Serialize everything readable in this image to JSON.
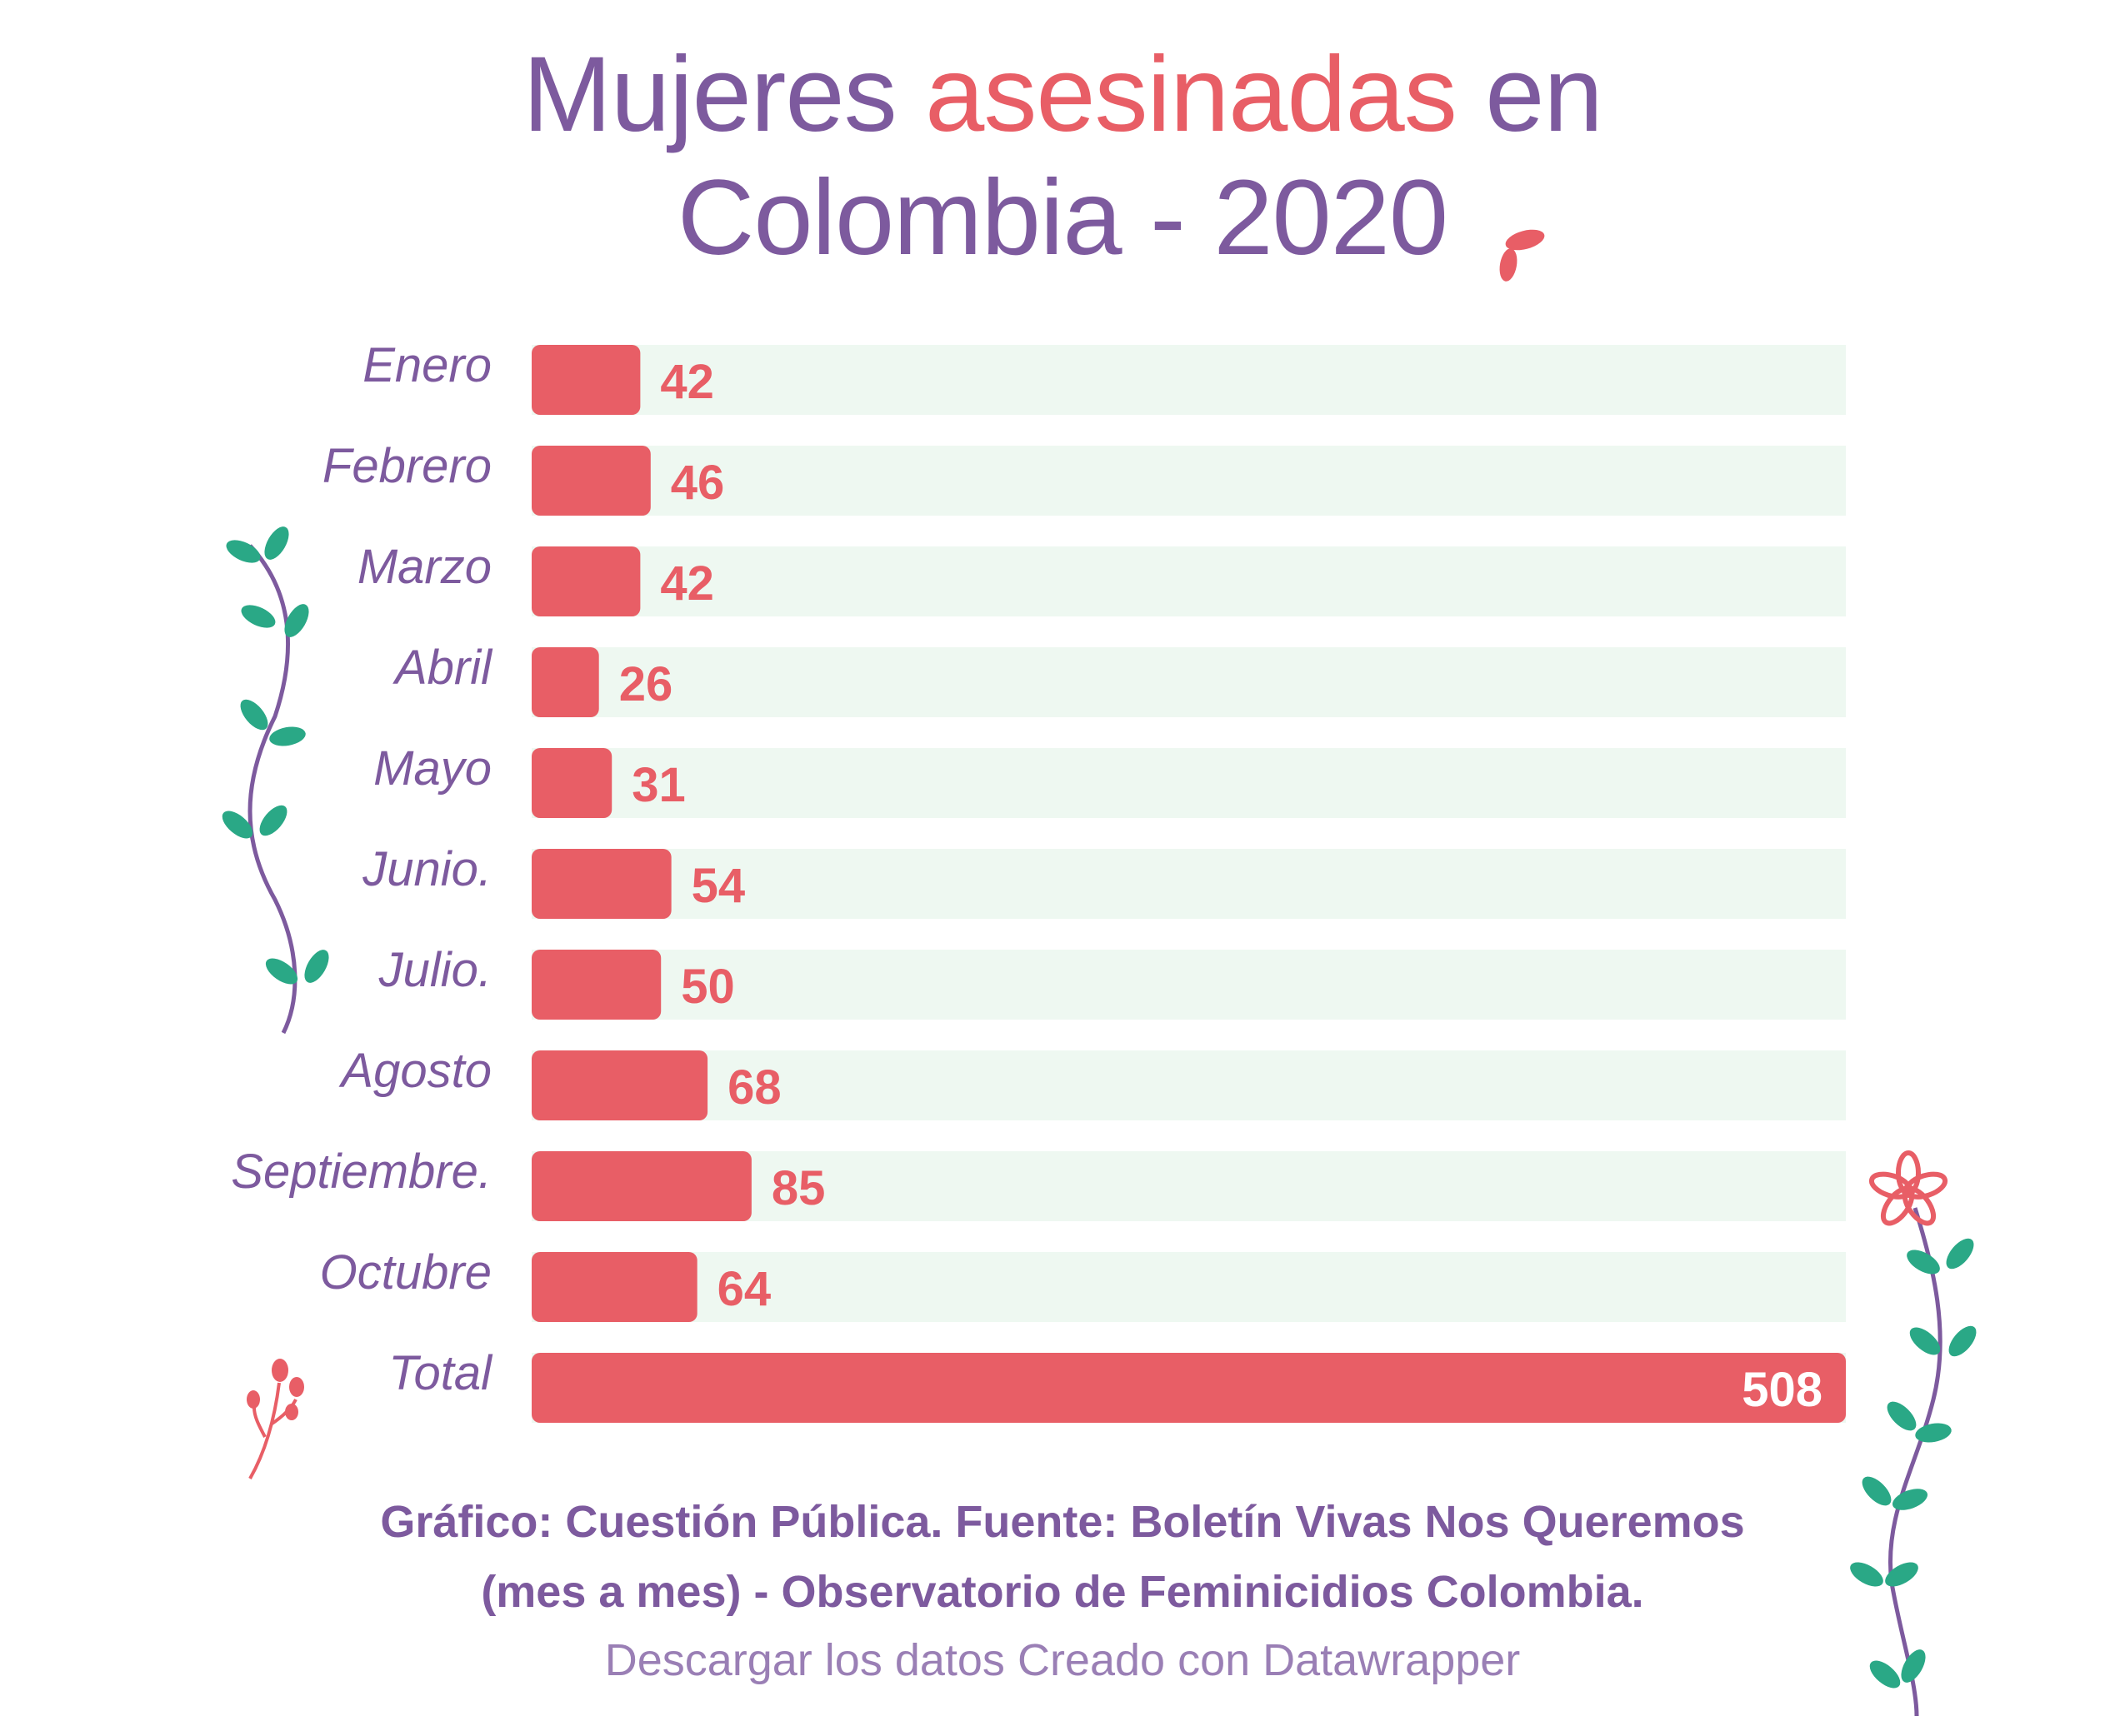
{
  "header": {
    "title_part1": "Mujeres ",
    "title_accent": "asesinadas",
    "title_part2": " en",
    "title_line2": "Colombia - 2020"
  },
  "colors": {
    "purple": "#7d5a9e",
    "accent": "#e85e66",
    "track": "#eef8f1",
    "leaf": "#2aa886"
  },
  "chart_data": {
    "type": "bar",
    "orientation": "horizontal",
    "categories": [
      "Enero",
      "Febrero",
      "Marzo",
      "Abril",
      "Mayo",
      "Junio.",
      "Julio.",
      "Agosto",
      "Septiembre.",
      "Octubre",
      "Total"
    ],
    "values": [
      42,
      46,
      42,
      26,
      31,
      54,
      50,
      68,
      85,
      64,
      508
    ],
    "value_labels": [
      "42",
      "46",
      "42",
      "26",
      "31",
      "54",
      "50",
      "68",
      "85",
      "64",
      "508"
    ],
    "xlim": [
      0,
      508
    ],
    "grid": false,
    "legend": "none"
  },
  "footer": {
    "line1": "Gráfico: Cuestión Pública. Fuente: Boletín Vivas Nos Queremos",
    "line2": "(mes a mes) - Observatorio de Feminicidios Colombia.",
    "download_label": "Descargar los datos",
    "created_label": "Creado con Datawrapper"
  }
}
